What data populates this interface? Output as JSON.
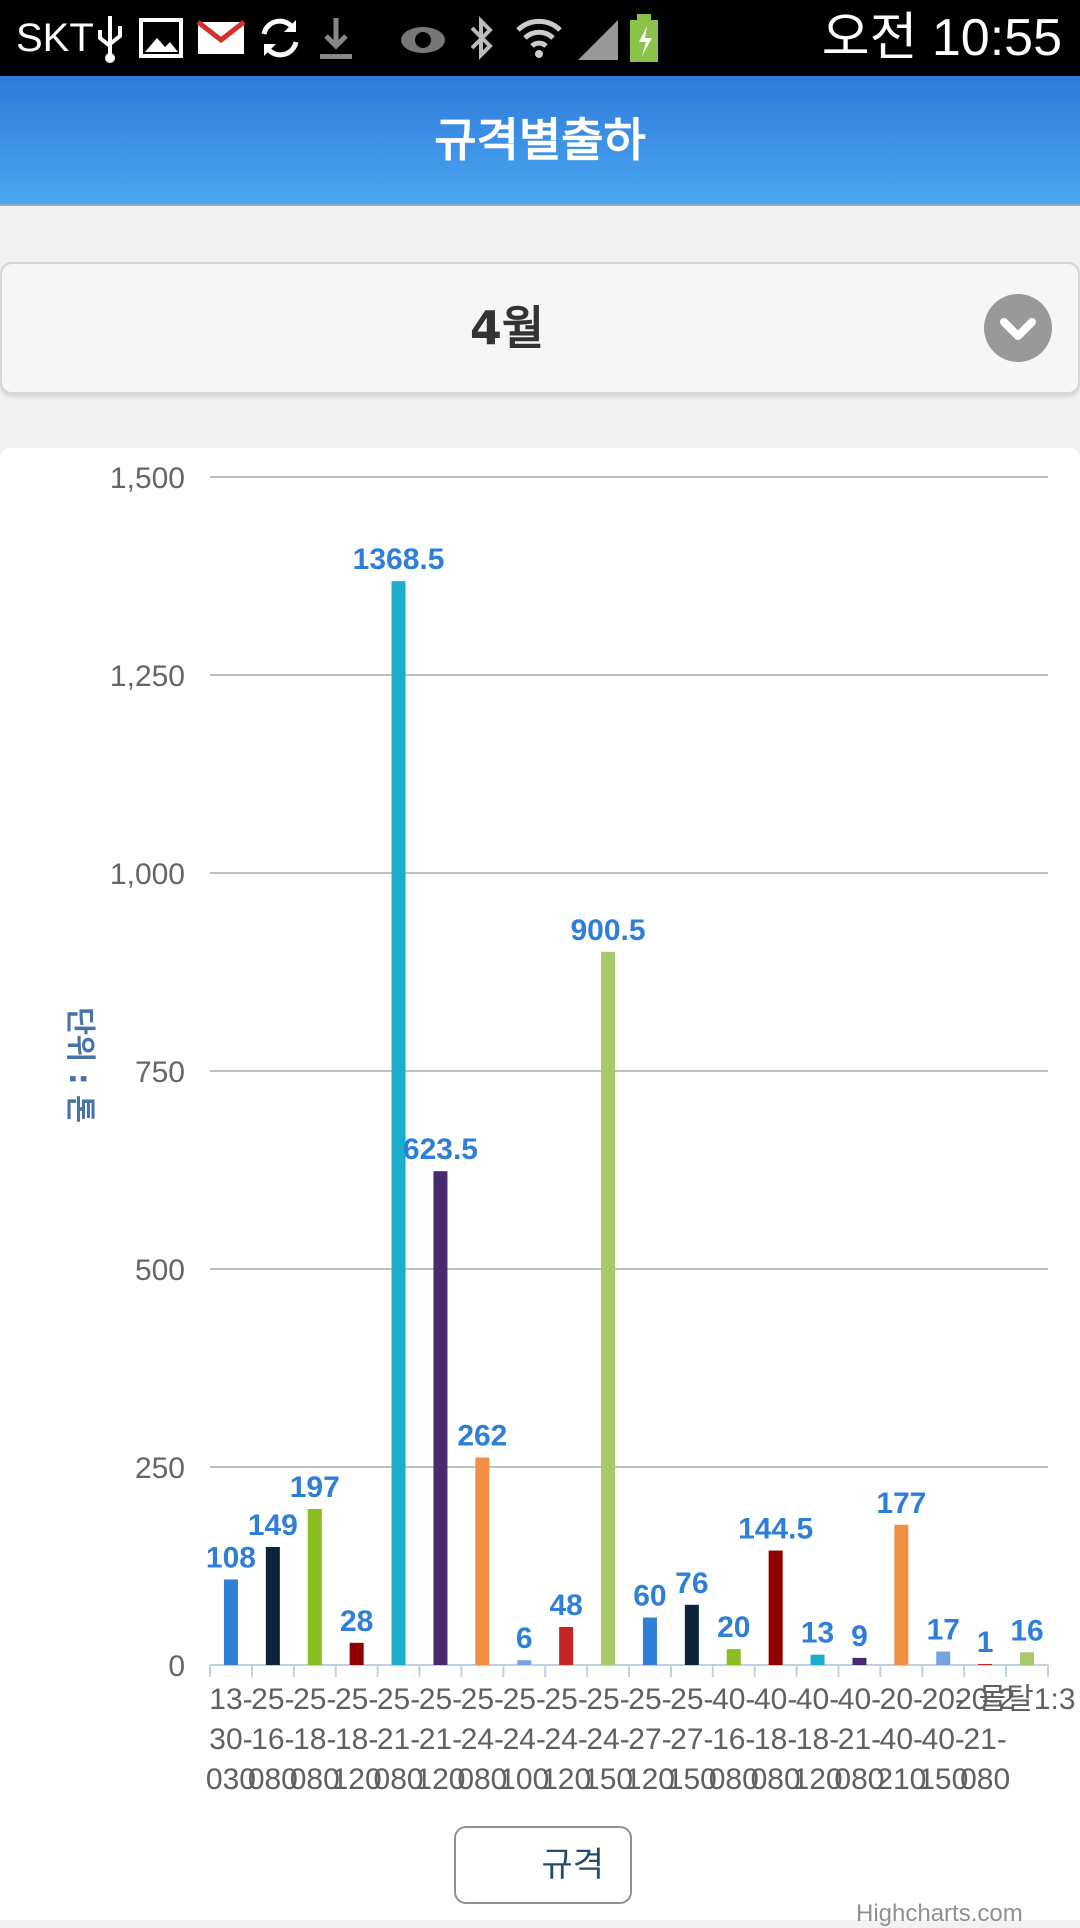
{
  "status_bar": {
    "carrier": "SKT",
    "clock": "오전 10:55",
    "icons": [
      "usb-icon",
      "image-icon",
      "mail-icon",
      "sync-icon",
      "download-icon",
      "eye-icon",
      "bluetooth-icon",
      "wifi-icon",
      "signal-icon",
      "battery-icon"
    ]
  },
  "header": {
    "title": "규격별출하"
  },
  "month_select": {
    "value": "4월"
  },
  "credits": "Highcharts.com",
  "colors": {
    "header_top": "#2f7ad9",
    "header_bottom": "#4aa6f1",
    "data_label": "#2f7ed8",
    "axis_title": "#4572a7"
  },
  "chart_data": {
    "type": "bar",
    "title": "",
    "xlabel": "규격",
    "ylabel": "단위 : 톤",
    "ylim": [
      0,
      1500
    ],
    "yticks": [
      0,
      250,
      500,
      750,
      1000,
      1250,
      1500
    ],
    "ytick_labels": [
      "0",
      "250",
      "500",
      "750",
      "1,000",
      "1,250",
      "1,500"
    ],
    "grid": true,
    "legend": "bottom-center",
    "categories": [
      "13-30-030",
      "25-16-080",
      "25-18-080",
      "25-18-120",
      "25-21-080",
      "25-21-120",
      "25-24-080",
      "25-24-100",
      "25-24-120",
      "25-24-150",
      "25-27-120",
      "25-27-150",
      "40-16-080",
      "40-18-080",
      "40-18-120",
      "40-21-080",
      "20-40-210",
      "20-40-150",
      "20-21-080",
      "몰탈1:3"
    ],
    "category_lines": [
      [
        "13-",
        "30-",
        "030"
      ],
      [
        "25-",
        "16-",
        "080"
      ],
      [
        "25-",
        "18-",
        "080"
      ],
      [
        "25-",
        "18-",
        "120"
      ],
      [
        "25-",
        "21-",
        "080"
      ],
      [
        "25-",
        "21-",
        "120"
      ],
      [
        "25-",
        "24-",
        "080"
      ],
      [
        "25-",
        "24-",
        "100"
      ],
      [
        "25-",
        "24-",
        "120"
      ],
      [
        "25-",
        "24-",
        "150"
      ],
      [
        "25-",
        "27-",
        "120"
      ],
      [
        "25-",
        "27-",
        "150"
      ],
      [
        "40-",
        "16-",
        "080"
      ],
      [
        "40-",
        "18-",
        "080"
      ],
      [
        "40-",
        "18-",
        "120"
      ],
      [
        "40-",
        "21-",
        "080"
      ],
      [
        "20-",
        "40-",
        "210"
      ],
      [
        "20-",
        "40-",
        "150"
      ],
      [
        "20-2",
        "21-",
        "080"
      ],
      [
        "몰탈1:3",
        "",
        ""
      ]
    ],
    "values": [
      108,
      149,
      197,
      28,
      1368.5,
      623.5,
      262,
      6,
      48,
      900.5,
      60,
      76,
      20,
      144.5,
      13,
      9,
      177,
      17,
      1,
      16
    ],
    "value_labels": [
      "108",
      "149",
      "197",
      "28",
      "1368.5",
      "623.5",
      "262",
      "6",
      "48",
      "900.5",
      "60",
      "76",
      "20",
      "144.5",
      "13",
      "9",
      "177",
      "17",
      "1",
      "16"
    ],
    "bar_colors": [
      "#2f7ed8",
      "#0d233a",
      "#8bbc21",
      "#910000",
      "#1aadce",
      "#492970",
      "#f28f43",
      "#77a1e5",
      "#c42525",
      "#a6c96a",
      "#2f7ed8",
      "#0d233a",
      "#8bbc21",
      "#910000",
      "#1aadce",
      "#492970",
      "#f28f43",
      "#77a1e5",
      "#c42525",
      "#a6c96a"
    ]
  }
}
